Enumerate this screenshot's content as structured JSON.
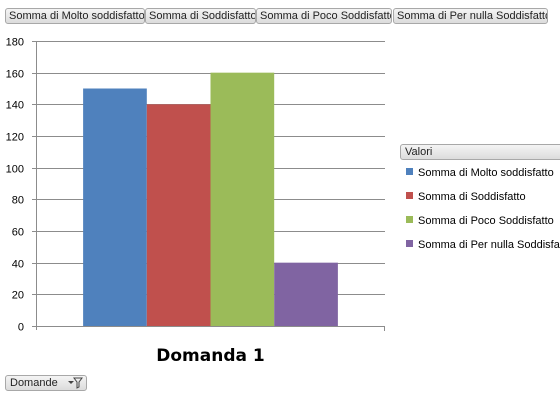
{
  "field_buttons": [
    {
      "label": "Somma di Molto soddisfatto"
    },
    {
      "label": "Somma di Soddisfatto"
    },
    {
      "label": "Somma di Poco Soddisfatto"
    },
    {
      "label": "Somma di Per nulla Soddisfatto"
    }
  ],
  "legend": {
    "header": "Valori"
  },
  "axis_field": {
    "label": "Domande",
    "icon": "filter-dropdown-icon"
  },
  "chart_data": {
    "type": "bar",
    "categories": [
      "Domanda 1"
    ],
    "series": [
      {
        "name": "Somma di Molto soddisfatto",
        "values": [
          150
        ],
        "color": "#4f81bd"
      },
      {
        "name": "Somma di Soddisfatto",
        "values": [
          140
        ],
        "color": "#c0504d"
      },
      {
        "name": "Somma di Poco Soddisfatto",
        "values": [
          160
        ],
        "color": "#9bbb59"
      },
      {
        "name": "Somma di Per nulla Soddisfatto",
        "values": [
          40
        ],
        "color": "#8064a2"
      }
    ],
    "ylim": [
      0,
      180
    ],
    "yticks": [
      0,
      20,
      40,
      60,
      80,
      100,
      120,
      140,
      160,
      180
    ],
    "grid": true,
    "legend_position": "right",
    "title": "",
    "xlabel": "",
    "ylabel": ""
  }
}
